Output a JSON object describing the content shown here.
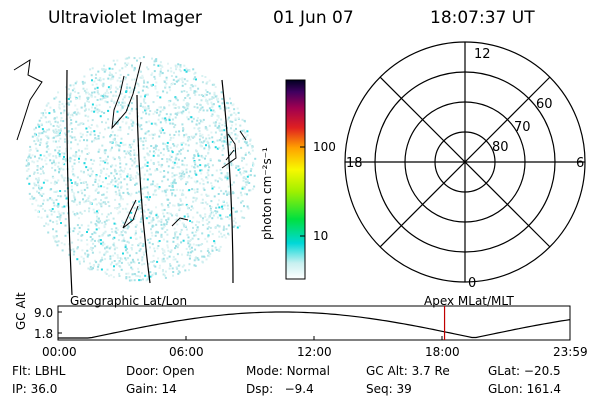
{
  "header": {
    "instrument": "Ultraviolet Imager",
    "date": "01 Jun 07",
    "time": "18:07:37 UT"
  },
  "left_panel": {
    "label": "Geographic Lat/Lon"
  },
  "right_panel": {
    "label": "Apex MLat/MLT",
    "mlt_labels": {
      "top": "12",
      "left": "18",
      "right": "6",
      "bottom": "0"
    },
    "lat_labels": [
      "60",
      "70",
      "80"
    ]
  },
  "colorbar": {
    "unit": "photon cm⁻²s⁻¹",
    "ticks": [
      "100",
      "10"
    ]
  },
  "orbit": {
    "axis_label": "GC Alt",
    "y_ticks": [
      "9.0",
      "1.8"
    ],
    "x_ticks": [
      "00:00",
      "06:00",
      "12:00",
      "18:00",
      "23:59"
    ],
    "current_time_hours": 18.12
  },
  "info": {
    "row1": [
      {
        "key": "Flt:",
        "val": "LBHL"
      },
      {
        "key": "Door:",
        "val": "Open"
      },
      {
        "key": "Mode:",
        "val": "Normal"
      },
      {
        "key": "GC Alt:",
        "val": "3.7 Re"
      },
      {
        "key": "GLat:",
        "val": "−20.5"
      }
    ],
    "row2": [
      {
        "key": "IP:",
        "val": "36.0"
      },
      {
        "key": "Gain:",
        "val": "14"
      },
      {
        "key": "Dsp:",
        "val": "−9.4"
      },
      {
        "key": "Seq:",
        "val": "39"
      },
      {
        "key": "GLon:",
        "val": "161.4"
      }
    ]
  }
}
